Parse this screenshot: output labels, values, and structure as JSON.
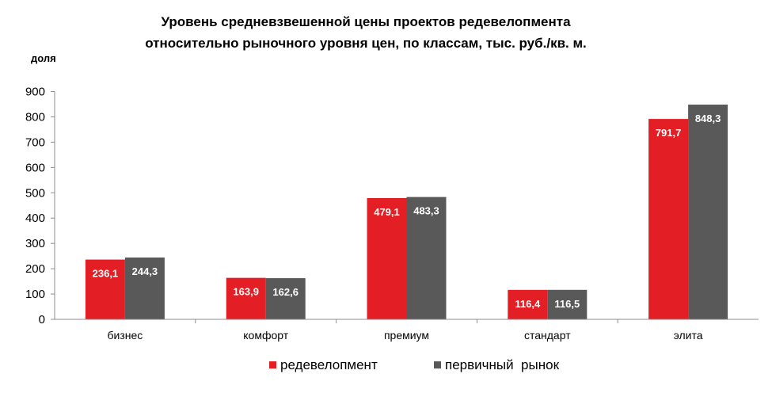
{
  "chart_data": {
    "type": "bar",
    "title_line1": "Уровень средневзвешенной цены проектов редевелопмента",
    "title_line2": "относительно рыночного уровня цен, по классам, тыс. руб./кв. м.",
    "unit_label": "доля",
    "categories": [
      "бизнес",
      "комфорт",
      "премиум",
      "стандарт",
      "элита"
    ],
    "series": [
      {
        "name": "редевелопмент",
        "color": "#e31e24",
        "values": [
          236.1,
          163.9,
          479.1,
          116.4,
          791.7
        ],
        "labels": [
          "236,1",
          "163,9",
          "479,1",
          "116,4",
          "791,7"
        ]
      },
      {
        "name": "первичный  рынок",
        "color": "#595959",
        "values": [
          244.3,
          162.6,
          483.3,
          116.5,
          848.3
        ],
        "labels": [
          "244,3",
          "162,6",
          "483,3",
          "116,5",
          "848,3"
        ]
      }
    ],
    "ylim": [
      0,
      900
    ],
    "yticks": [
      "0",
      "100",
      "200",
      "300",
      "400",
      "500",
      "600",
      "700",
      "800",
      "900"
    ],
    "grid": false,
    "legend_position": "bottom"
  }
}
